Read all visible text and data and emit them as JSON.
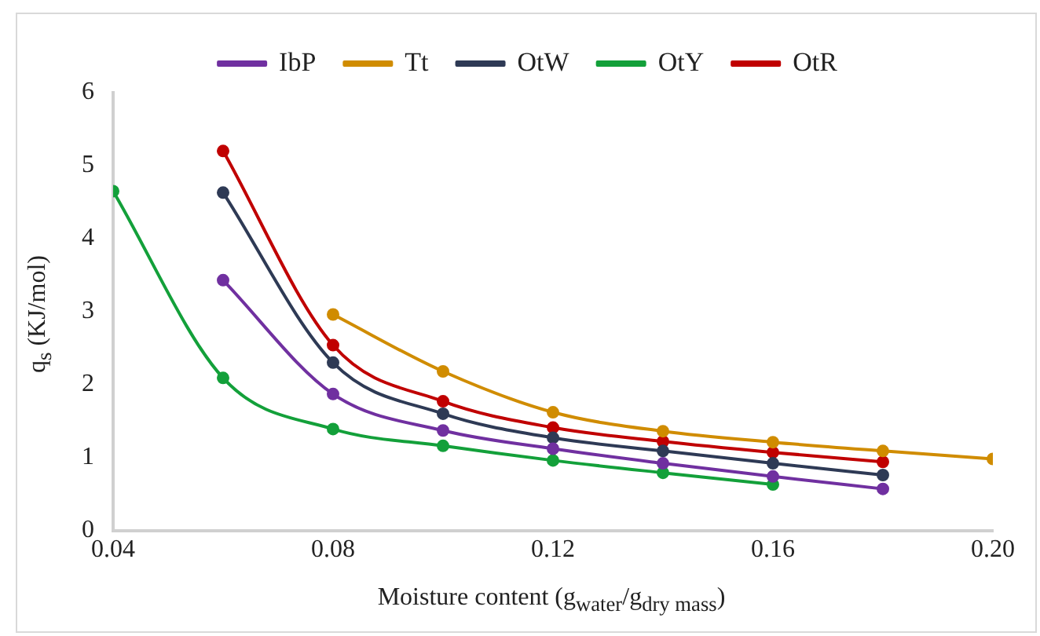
{
  "chart_data": {
    "type": "line",
    "xlabel": "Moisture content (g$_{water}$/g$_{dry mass}$)",
    "ylabel": "q$_{s}$ (KJ/mol)",
    "xlim": [
      0.04,
      0.2
    ],
    "xticks": [
      0.04,
      0.08,
      0.12,
      0.16,
      {
        "value": 0.2,
        "label": "0.20"
      }
    ],
    "ylim": [
      0,
      6
    ],
    "yticks": [
      0,
      1,
      2,
      3,
      4,
      5,
      6
    ],
    "grid": false,
    "legend": "top",
    "marker": "circle",
    "line_style": "solid",
    "series": [
      {
        "name": "IbP",
        "color": "#7030a0",
        "x": [
          0.06,
          0.08,
          0.1,
          0.12,
          0.14,
          0.16,
          0.18
        ],
        "values": [
          3.43,
          1.87,
          1.37,
          1.12,
          0.92,
          0.74,
          0.57
        ]
      },
      {
        "name": "Tt",
        "color": "#d08c00",
        "x": [
          0.08,
          0.1,
          0.12,
          0.14,
          0.16,
          0.18,
          0.2
        ],
        "values": [
          2.96,
          2.18,
          1.62,
          1.36,
          1.21,
          1.09,
          0.98
        ]
      },
      {
        "name": "OtW",
        "color": "#2e3a55",
        "x": [
          0.06,
          0.08,
          0.1,
          0.12,
          0.14,
          0.16,
          0.18
        ],
        "values": [
          4.63,
          2.3,
          1.6,
          1.27,
          1.09,
          0.92,
          0.76
        ]
      },
      {
        "name": "OtY",
        "color": "#13a03a",
        "x": [
          0.04,
          0.06,
          0.08,
          0.1,
          0.12,
          0.14,
          0.16
        ],
        "values": [
          4.65,
          2.09,
          1.39,
          1.16,
          0.96,
          0.79,
          0.63
        ]
      },
      {
        "name": "OtR",
        "color": "#c00000",
        "x": [
          0.06,
          0.08,
          0.1,
          0.12,
          0.14,
          0.16,
          0.18
        ],
        "values": [
          5.2,
          2.54,
          1.77,
          1.41,
          1.22,
          1.07,
          0.94
        ]
      }
    ]
  }
}
